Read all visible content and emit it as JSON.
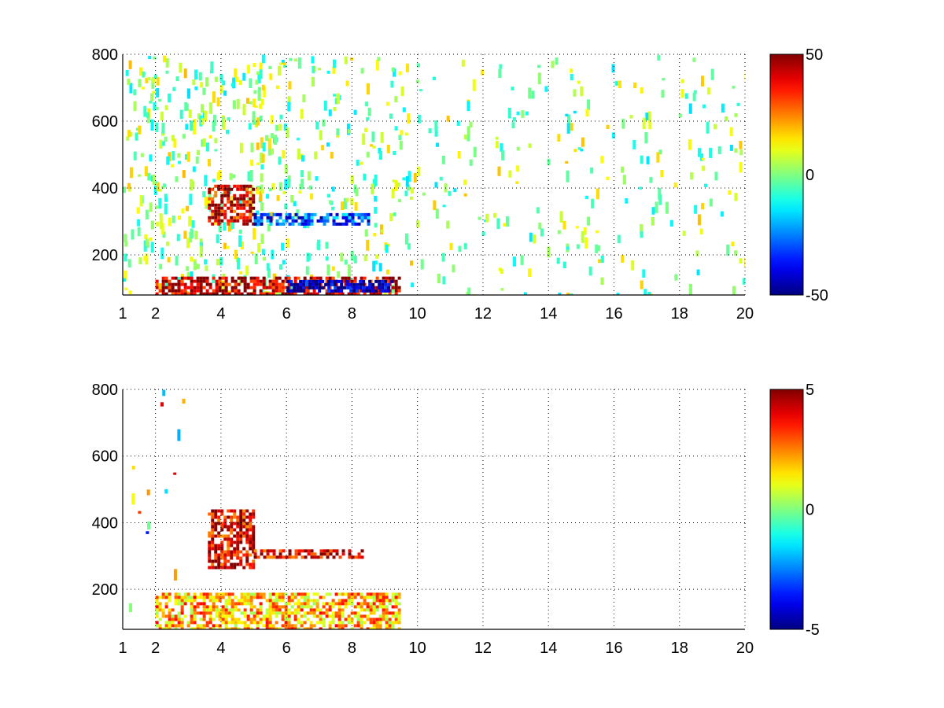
{
  "chart_data": [
    {
      "type": "heatmap",
      "title": "",
      "xlabel": "",
      "ylabel": "",
      "xlim": [
        1,
        20
      ],
      "ylim": [
        80,
        800
      ],
      "x_ticks": [
        1,
        2,
        4,
        6,
        8,
        10,
        12,
        14,
        16,
        18,
        20
      ],
      "y_ticks": [
        200,
        400,
        600,
        800
      ],
      "grid": true,
      "colormap": "jet",
      "colorbar": {
        "min": -50,
        "max": 50,
        "ticks": [
          50,
          0,
          -50
        ]
      },
      "features": [
        {
          "name": "",
          "x_range": [
            2.0,
            9.4
          ],
          "y_range": [
            85,
            135
          ],
          "value": 45
        },
        {
          "name": "",
          "x_range": [
            3.6,
            5.0
          ],
          "y_range": [
            290,
            410
          ],
          "value": 40
        },
        {
          "name": "",
          "x_range": [
            5.0,
            8.5
          ],
          "y_range": [
            295,
            325
          ],
          "value": -30
        },
        {
          "name": "",
          "x_range": [
            6.0,
            9.2
          ],
          "y_range": [
            95,
            125
          ],
          "value": -45
        }
      ]
    },
    {
      "type": "heatmap",
      "title": "",
      "xlabel": "",
      "ylabel": "",
      "xlim": [
        1,
        20
      ],
      "ylim": [
        80,
        800
      ],
      "x_ticks": [
        1,
        2,
        4,
        6,
        8,
        10,
        12,
        14,
        16,
        18,
        20
      ],
      "y_ticks": [
        200,
        400,
        600,
        800
      ],
      "grid": true,
      "colormap": "jet",
      "colorbar": {
        "min": -5,
        "max": 5,
        "ticks": [
          5,
          0,
          -5
        ]
      },
      "features": [
        {
          "name": "",
          "x_range": [
            2.0,
            9.4
          ],
          "y_range": [
            85,
            190
          ],
          "value": 2
        },
        {
          "name": "",
          "x_range": [
            3.6,
            5.0
          ],
          "y_range": [
            270,
            440
          ],
          "value": 4
        },
        {
          "name": "",
          "x_range": [
            5.0,
            8.3
          ],
          "y_range": [
            295,
            320
          ],
          "value": 4
        }
      ]
    }
  ]
}
